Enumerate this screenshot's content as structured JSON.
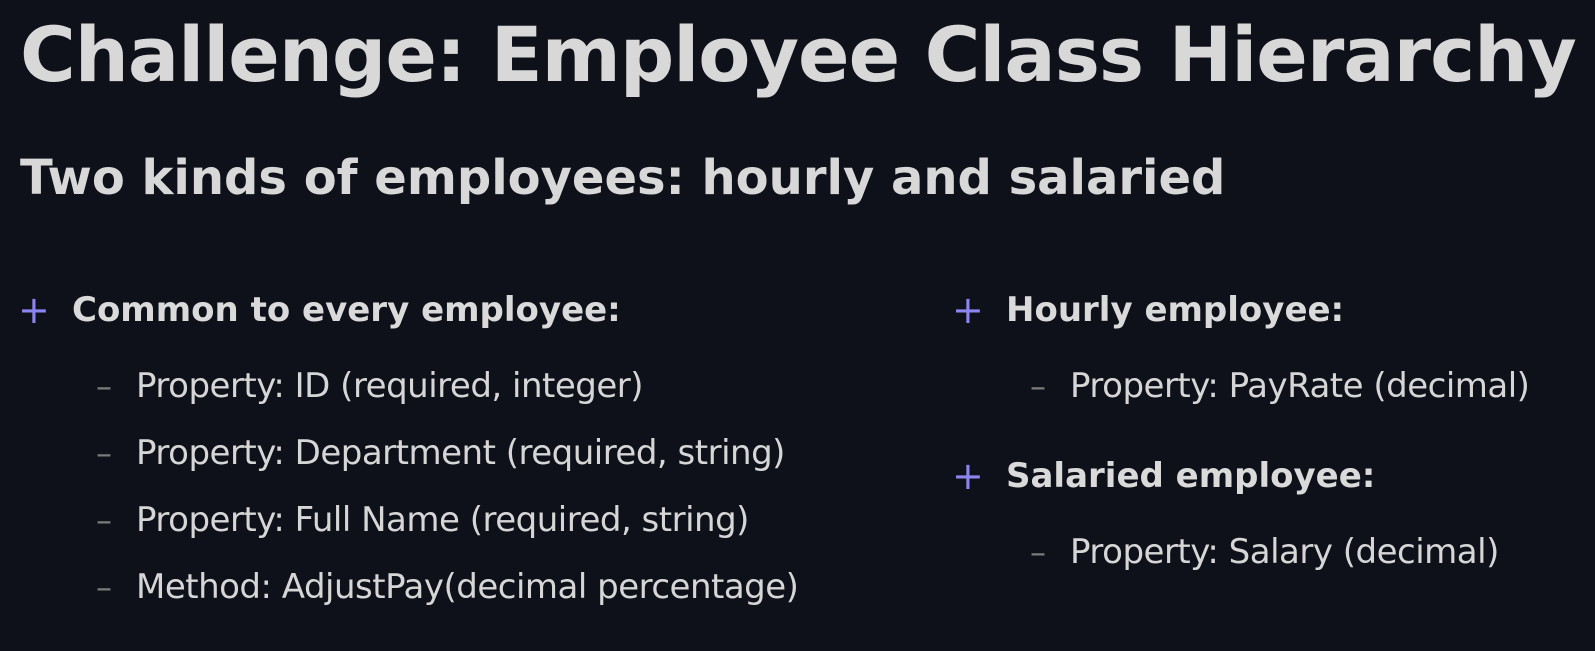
{
  "title": "Challenge: Employee Class Hierarchy",
  "subtitle": "Two kinds of employees: hourly and salaried",
  "bullet_symbol": "+",
  "dash_symbol": "–",
  "accent_color": "#8c85f0",
  "left": {
    "heading": "Common to every employee:",
    "items": [
      "Property: ID (required, integer)",
      "Property: Department (required, string)",
      "Property: Full Name (required, string)",
      "Method: AdjustPay(decimal percentage)"
    ]
  },
  "right": {
    "groups": [
      {
        "heading": "Hourly employee:",
        "items": [
          "Property: PayRate (decimal)"
        ]
      },
      {
        "heading": "Salaried employee:",
        "items": [
          "Property: Salary (decimal)"
        ]
      }
    ]
  }
}
